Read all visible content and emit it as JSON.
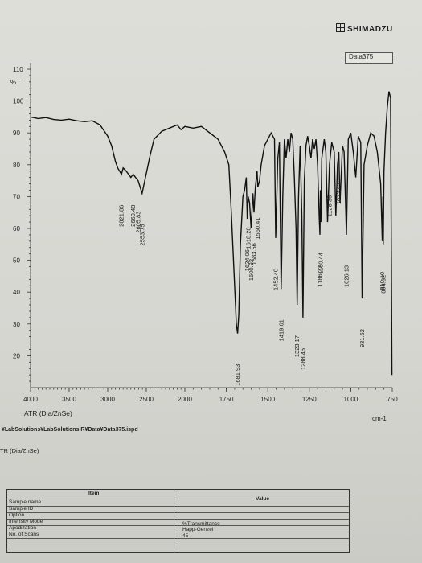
{
  "header": {
    "brand": "SHIMADZU"
  },
  "chart_data": {
    "type": "line",
    "title": "",
    "mode": "ATR (Dia/ZnSe)",
    "xlabel": "cm-1",
    "ylabel": "%T",
    "xlim": [
      4000,
      750
    ],
    "ylim": [
      10,
      110
    ],
    "x_ticks": [
      4000,
      3500,
      3000,
      2500,
      2000,
      1750,
      1500,
      1250,
      1000,
      750
    ],
    "y_ticks": [
      20,
      30,
      40,
      50,
      60,
      70,
      80,
      90,
      100,
      110
    ],
    "grid": false,
    "legend": "top-right",
    "series": [
      {
        "name": "Data375",
        "x": [
          4000,
          3900,
          3800,
          3700,
          3600,
          3500,
          3400,
          3300,
          3200,
          3100,
          3000,
          2950,
          2920,
          2900,
          2870,
          2821.86,
          2800,
          2760,
          2700,
          2669.48,
          2640,
          2605.83,
          2580,
          2553.75,
          2520,
          2450,
          2400,
          2300,
          2200,
          2100,
          2050,
          2000,
          1950,
          1900,
          1850,
          1800,
          1760,
          1735,
          1720,
          1700,
          1690,
          1681.93,
          1675,
          1665,
          1650,
          1640,
          1630,
          1624.06,
          1618.28,
          1610,
          1600.92,
          1590,
          1583.56,
          1575,
          1565,
          1560.41,
          1550,
          1540,
          1520,
          1500,
          1480,
          1460,
          1452.4,
          1440,
          1430,
          1419.61,
          1410,
          1400,
          1390,
          1380,
          1370,
          1360,
          1350,
          1340,
          1330,
          1323.17,
          1315,
          1305,
          1295,
          1288.45,
          1280,
          1270,
          1260,
          1250,
          1240,
          1230,
          1220,
          1210,
          1200,
          1190,
          1186.22,
          1183,
          1180.44,
          1175,
          1160,
          1150,
          1140,
          1128.36,
          1115,
          1100,
          1090,
          1080,
          1072.42,
          1065,
          1050,
          1040,
          1026.13,
          1015,
          1000,
          985,
          970,
          955,
          940,
          931.62,
          920,
          900,
          880,
          860,
          840,
          820,
          810.1,
          806,
          804.32,
          800,
          790,
          780,
          770,
          760,
          752
        ],
        "values": [
          95,
          94.5,
          94.8,
          94.2,
          94,
          94.3,
          93.8,
          93.5,
          93.8,
          92.5,
          89,
          86,
          83,
          81,
          79,
          77,
          79,
          78,
          76,
          77,
          76,
          75,
          73,
          71,
          75,
          83,
          88,
          90.5,
          91.5,
          92.5,
          91,
          92,
          91.5,
          92,
          90,
          88,
          84,
          80,
          65,
          42,
          30,
          27,
          33,
          55,
          70,
          72,
          76,
          63,
          70,
          68,
          60,
          71,
          65,
          73,
          78,
          73,
          75,
          80,
          86,
          88,
          90,
          88,
          57,
          82,
          87,
          41,
          70,
          88,
          82,
          88,
          84,
          90,
          88,
          76,
          60,
          36,
          70,
          86,
          64,
          32,
          75,
          86,
          89,
          86,
          82,
          88,
          85,
          88,
          80,
          63,
          58,
          72,
          62,
          82,
          88,
          84,
          62,
          80,
          87,
          84,
          64,
          80,
          84,
          68,
          86,
          84,
          58,
          88,
          90,
          84,
          76,
          89,
          87,
          38,
          80,
          86,
          90,
          89,
          84,
          74,
          56,
          70,
          55,
          78,
          90,
          98,
          103,
          101,
          14
        ]
      }
    ],
    "peak_labels": [
      "2821.86",
      "2669.48",
      "2605.83",
      "2553.75",
      "1681.93",
      "1624.06",
      "1618.28",
      "1600.92",
      "1583.56",
      "1560.41",
      "1452.40",
      "1419.61",
      "1323.17",
      "1288.45",
      "1186.22",
      "1180.44",
      "1128.36",
      "1072.42",
      "1026.13",
      "931.62",
      "810.10",
      "804.32"
    ]
  },
  "footer": {
    "file_path": "¥LabSolutions¥LabSolutionsIR¥Data¥Data375.ispd",
    "subtitle": "TR (Dia/ZnSe)"
  },
  "info_table": {
    "header_item": "Item",
    "header_value": "Value",
    "rows": [
      {
        "label": "Sample name",
        "value": ""
      },
      {
        "label": "Sample ID",
        "value": ""
      },
      {
        "label": "Option",
        "value": ""
      },
      {
        "label": "Intensity Mode",
        "value": "%Transmittance"
      },
      {
        "label": "Apodization",
        "value": "Happ-Genzel"
      },
      {
        "label": "No. of Scans",
        "value": "45"
      }
    ]
  }
}
